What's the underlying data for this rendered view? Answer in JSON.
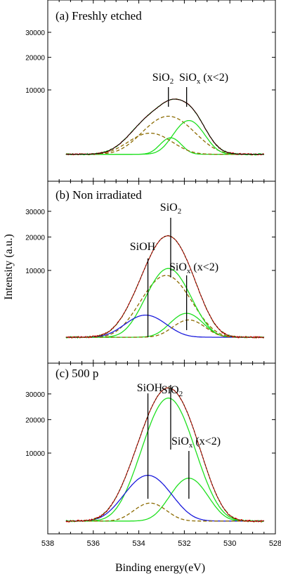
{
  "chart_data": {
    "type": "line",
    "xlabel": "Binding energy(eV)",
    "ylabel": "Intensity (a.u.)",
    "x_ticks": [
      "538",
      "536",
      "534",
      "532",
      "530",
      "528"
    ],
    "xlim": [
      538,
      528
    ],
    "x_reversed": true,
    "y_ticks": [
      "10000",
      "20000",
      "30000"
    ],
    "ylim": [
      0,
      31000
    ],
    "y_scale": "sqrt",
    "colors": {
      "raw": "#e8000b",
      "envelope": "#000000",
      "sio2": "#8b6a00",
      "siox": "#1fe01f",
      "sioh": "#1a1adc",
      "extra": "#8b6a00"
    },
    "panels": [
      {
        "label": "(a) Freshly etched",
        "background": 330,
        "peaks": [
          {
            "label": "SiO2",
            "center": 532.7,
            "sigma": 0.9,
            "height": 4100,
            "color": "sio2"
          },
          {
            "label": "SiOx (x<2)",
            "center": 531.8,
            "sigma": 0.55,
            "height": 3400,
            "color": "siox"
          },
          {
            "label": "",
            "center": 532.6,
            "sigma": 0.4,
            "height": 1200,
            "color": "siox"
          },
          {
            "label": "",
            "center": 533.5,
            "sigma": 0.8,
            "height": 1700,
            "color": "extra"
          }
        ],
        "annotations": [
          {
            "text": "SiO",
            "sub": "2",
            "after": "",
            "center": 532.7
          },
          {
            "text": "SiO",
            "sub": "x",
            "after": " (x<2)",
            "center": 531.9
          }
        ]
      },
      {
        "label": "(b) Non irradiated",
        "background": 300,
        "peaks": [
          {
            "label": "SiO2",
            "center": 532.8,
            "sigma": 0.85,
            "height": 8500,
            "color": "sio2"
          },
          {
            "label": "SiOx (x<2)",
            "center": 532.7,
            "sigma": 0.75,
            "height": 10200,
            "color": "siox"
          },
          {
            "label": "",
            "center": 531.9,
            "sigma": 0.6,
            "height": 1900,
            "color": "siox"
          },
          {
            "label": "SiOH",
            "center": 533.7,
            "sigma": 0.75,
            "height": 1700,
            "color": "sioh"
          },
          {
            "label": "",
            "center": 531.8,
            "sigma": 0.6,
            "height": 1200,
            "color": "extra"
          }
        ],
        "annotations": [
          {
            "text": "SiO",
            "sub": "2",
            "after": "",
            "center": 532.6
          },
          {
            "text": "SiOH",
            "sub": "",
            "after": "",
            "center": 533.6
          },
          {
            "text": "SiO",
            "sub": "x",
            "after": " (x<2)",
            "center": 531.9
          }
        ]
      },
      {
        "label": "(c) 500 p",
        "background": 250,
        "peaks": [
          {
            "label": "SiO2",
            "center": 532.7,
            "sigma": 0.85,
            "height": 28000,
            "color": "siox"
          },
          {
            "label": "SiOx (x<2)",
            "center": 531.8,
            "sigma": 0.65,
            "height": 4500,
            "color": "siox"
          },
          {
            "label": "SiOH",
            "center": 533.6,
            "sigma": 0.8,
            "height": 5000,
            "color": "sioh"
          },
          {
            "label": "",
            "center": 533.5,
            "sigma": 0.6,
            "height": 1200,
            "color": "extra"
          }
        ],
        "annotations": [
          {
            "text": "SiO",
            "sub": "2",
            "after": "",
            "center": 532.6
          },
          {
            "text": "SiOH",
            "sub": "",
            "after": "",
            "center": 533.6
          },
          {
            "text": "SiO",
            "sub": "x",
            "after": " (x<2)",
            "center": 531.8
          }
        ]
      }
    ]
  }
}
